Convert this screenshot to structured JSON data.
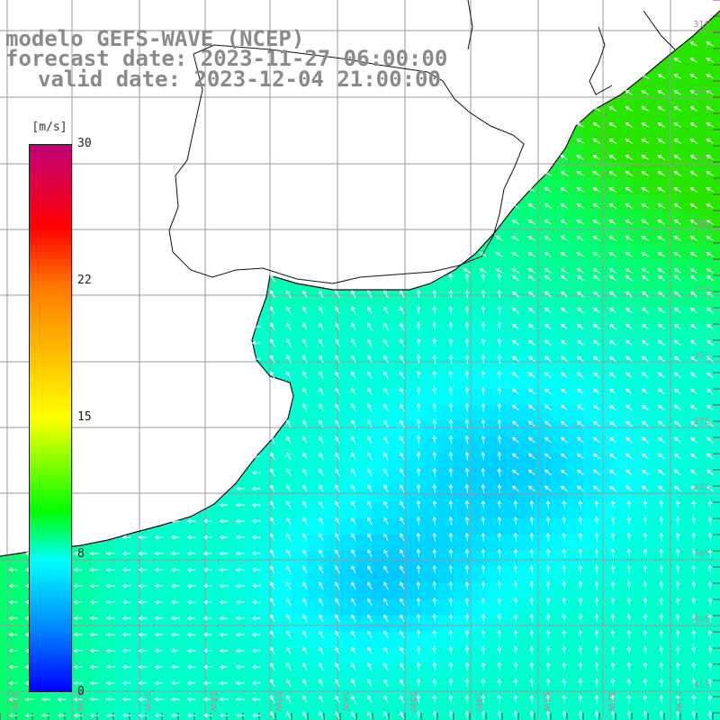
{
  "header": {
    "title": "modelo GEFS-WAVE (NCEP)",
    "forecast": "forecast date: 2023-11-27 06:00:00",
    "valid": "valid date: 2023-12-04 21:00:00"
  },
  "colorbar": {
    "unit": "[m/s]",
    "ticks": [
      "30",
      "22",
      "15",
      "8",
      "0"
    ],
    "tick_values": [
      30,
      22,
      15,
      8,
      0
    ],
    "range": [
      0,
      30
    ],
    "colors": [
      "#0000ff",
      "#008cff",
      "#00ffff",
      "#00ff00",
      "#ffff00",
      "#ff7a00",
      "#ff0000",
      "#c2007a"
    ]
  },
  "map": {
    "lon_labels": [
      "61W",
      "60W",
      "59W",
      "58W",
      "57W",
      "56W",
      "55W",
      "54W",
      "53W",
      "52W",
      "51W"
    ],
    "lat_labels": [
      "31S",
      "32S",
      "33S",
      "34S",
      "35S",
      "36S",
      "37S",
      "38S",
      "39S",
      "40S",
      "41S"
    ],
    "land_color": "#ffffff",
    "grid_color": "#9a9a9a",
    "coast_color": "#111111",
    "arrow_color": "#ffffff"
  }
}
